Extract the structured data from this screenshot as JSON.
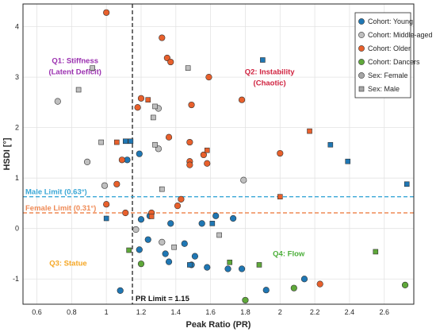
{
  "chart_data": {
    "type": "scatter",
    "xlabel": "Peak Ratio (PR)",
    "ylabel": "HSDI [°]",
    "xlim": [
      0.52,
      2.77
    ],
    "ylim": [
      -1.5,
      4.45
    ],
    "xticks": [
      "0.6",
      "0.8",
      "1",
      "1.2",
      "1.4",
      "1.6",
      "1.8",
      "2",
      "2.2",
      "2.4",
      "2.6"
    ],
    "yticks": [
      "-1",
      "0",
      "1",
      "2",
      "3",
      "4"
    ],
    "grid": true,
    "legend_position": "top-right",
    "legend": [
      {
        "label": "Cohort: Young",
        "marker": "circle",
        "color": "#1f77b4"
      },
      {
        "label": "Cohort: Middle-aged",
        "marker": "circle",
        "color": "#bfbfbf"
      },
      {
        "label": "Cohort: Older",
        "marker": "circle",
        "color": "#e8602c"
      },
      {
        "label": "Cohort: Dancers",
        "marker": "circle",
        "color": "#5fa83a"
      },
      {
        "label": "Sex: Female",
        "marker": "circle",
        "color": "#a6a6a6"
      },
      {
        "label": "Sex: Male",
        "marker": "square",
        "color": "#a6a6a6"
      }
    ],
    "reference_lines": [
      {
        "orientation": "vertical",
        "value": 1.15,
        "label": "PR Limit = 1.15",
        "color": "#333333"
      },
      {
        "orientation": "horizontal",
        "value": 0.63,
        "label": "Male Limit (0.63°)",
        "color": "#3aa7d6"
      },
      {
        "orientation": "horizontal",
        "value": 0.31,
        "label": "Female Limit (0.31°)",
        "color": "#ef8a55"
      }
    ],
    "annotations": [
      {
        "text": "Q1: Stiffness",
        "x": 0.82,
        "y": 3.28,
        "color": "#9b30b0"
      },
      {
        "text": "(Latent Deficit)",
        "x": 0.82,
        "y": 3.06,
        "color": "#9b30b0"
      },
      {
        "text": "Q2: Instability",
        "x": 1.94,
        "y": 3.06,
        "color": "#d0223f"
      },
      {
        "text": "(Chaotic)",
        "x": 1.94,
        "y": 2.84,
        "color": "#d0223f"
      },
      {
        "text": "Q3: Statue",
        "x": 0.78,
        "y": -0.74,
        "color": "#f5a623"
      },
      {
        "text": "Q4: Flow",
        "x": 2.05,
        "y": -0.55,
        "color": "#4caf3a"
      }
    ],
    "series": [
      {
        "name": "Cohort: Young",
        "color": "#1f77b4",
        "points": [
          [
            1.12,
            1.36,
            "circle"
          ],
          [
            1.19,
            1.48,
            "circle"
          ],
          [
            1.2,
            0.18,
            "circle"
          ],
          [
            1.25,
            0.25,
            "circle"
          ],
          [
            1.24,
            -0.22,
            "circle"
          ],
          [
            1.19,
            -0.42,
            "circle"
          ],
          [
            1.34,
            -0.5,
            "circle"
          ],
          [
            1.36,
            -0.66,
            "circle"
          ],
          [
            1.37,
            0.1,
            "circle"
          ],
          [
            1.45,
            -0.3,
            "circle"
          ],
          [
            1.49,
            -0.72,
            "circle"
          ],
          [
            1.55,
            0.1,
            "circle"
          ],
          [
            1.58,
            -0.77,
            "circle"
          ],
          [
            1.63,
            0.25,
            "circle"
          ],
          [
            1.51,
            -0.55,
            "circle"
          ],
          [
            1.7,
            -0.8,
            "circle"
          ],
          [
            1.73,
            0.2,
            "circle"
          ],
          [
            1.78,
            -0.8,
            "circle"
          ],
          [
            1.92,
            -1.22,
            "circle"
          ],
          [
            2.14,
            -1.0,
            "circle"
          ],
          [
            1.08,
            -1.23,
            "circle"
          ],
          [
            1.14,
            1.73,
            "square"
          ],
          [
            1.11,
            1.73,
            "square"
          ],
          [
            1.61,
            0.1,
            "square"
          ],
          [
            1.9,
            3.34,
            "square"
          ],
          [
            2.29,
            1.66,
            "square"
          ],
          [
            2.39,
            1.33,
            "square"
          ],
          [
            2.73,
            0.88,
            "square"
          ],
          [
            1.0,
            0.2,
            "square"
          ],
          [
            1.48,
            -0.72,
            "square"
          ]
        ]
      },
      {
        "name": "Cohort: Middle-aged",
        "color": "#bfbfbf",
        "points": [
          [
            0.72,
            2.52,
            "circle"
          ],
          [
            0.89,
            1.32,
            "circle"
          ],
          [
            0.99,
            0.85,
            "circle"
          ],
          [
            1.17,
            -0.02,
            "circle"
          ],
          [
            1.32,
            -0.27,
            "circle"
          ],
          [
            1.3,
            2.38,
            "circle"
          ],
          [
            1.3,
            1.58,
            "circle"
          ],
          [
            1.79,
            0.96,
            "circle"
          ],
          [
            0.92,
            3.18,
            "square"
          ],
          [
            0.84,
            2.75,
            "square"
          ],
          [
            0.97,
            1.71,
            "square"
          ],
          [
            1.28,
            2.42,
            "square"
          ],
          [
            1.27,
            2.2,
            "square"
          ],
          [
            1.28,
            1.66,
            "square"
          ],
          [
            1.47,
            3.18,
            "square"
          ],
          [
            1.32,
            0.78,
            "square"
          ],
          [
            1.39,
            -0.37,
            "square"
          ],
          [
            1.65,
            -0.13,
            "square"
          ]
        ]
      },
      {
        "name": "Cohort: Older",
        "color": "#e8602c",
        "points": [
          [
            1.0,
            4.28,
            "circle"
          ],
          [
            1.32,
            3.78,
            "circle"
          ],
          [
            1.35,
            3.38,
            "circle"
          ],
          [
            1.37,
            3.3,
            "circle"
          ],
          [
            1.59,
            3.0,
            "circle"
          ],
          [
            1.78,
            2.55,
            "circle"
          ],
          [
            1.2,
            2.58,
            "circle"
          ],
          [
            1.18,
            2.4,
            "circle"
          ],
          [
            1.49,
            2.45,
            "circle"
          ],
          [
            1.36,
            1.81,
            "circle"
          ],
          [
            1.48,
            1.71,
            "circle"
          ],
          [
            1.56,
            1.46,
            "circle"
          ],
          [
            1.48,
            1.33,
            "circle"
          ],
          [
            1.48,
            1.26,
            "circle"
          ],
          [
            1.58,
            1.29,
            "circle"
          ],
          [
            1.09,
            1.36,
            "circle"
          ],
          [
            1.06,
            0.88,
            "circle"
          ],
          [
            1.0,
            0.48,
            "circle"
          ],
          [
            1.43,
            0.58,
            "circle"
          ],
          [
            1.41,
            0.45,
            "circle"
          ],
          [
            1.26,
            0.31,
            "circle"
          ],
          [
            2.0,
            1.49,
            "circle"
          ],
          [
            1.11,
            0.31,
            "circle"
          ],
          [
            2.23,
            -1.1,
            "circle"
          ],
          [
            1.06,
            1.71,
            "square"
          ],
          [
            1.24,
            2.55,
            "square"
          ],
          [
            1.58,
            1.55,
            "square"
          ],
          [
            2.17,
            1.93,
            "square"
          ],
          [
            2.0,
            0.63,
            "square"
          ],
          [
            1.26,
            0.24,
            "square"
          ]
        ]
      },
      {
        "name": "Cohort: Dancers",
        "color": "#5fa83a",
        "points": [
          [
            1.2,
            -0.7,
            "circle"
          ],
          [
            1.8,
            -1.42,
            "circle"
          ],
          [
            2.08,
            -1.18,
            "circle"
          ],
          [
            2.72,
            -1.12,
            "circle"
          ],
          [
            1.13,
            -0.43,
            "square"
          ],
          [
            1.71,
            -0.67,
            "square"
          ],
          [
            1.88,
            -0.72,
            "square"
          ],
          [
            2.55,
            -0.46,
            "square"
          ]
        ]
      }
    ]
  }
}
